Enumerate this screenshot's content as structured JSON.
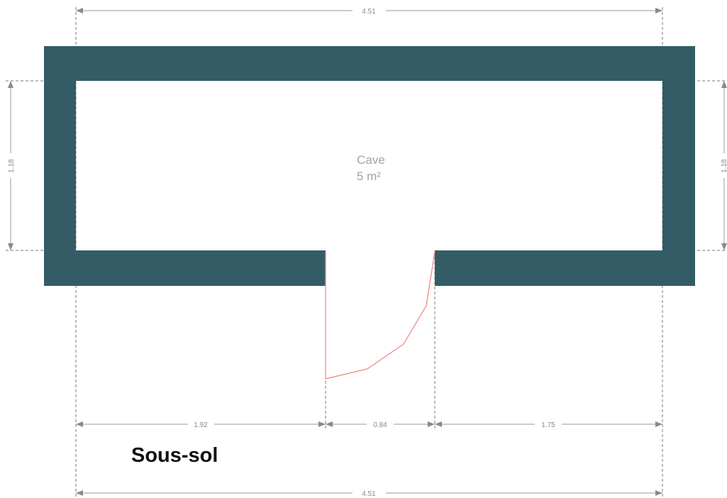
{
  "plan": {
    "level_title": "Sous-sol",
    "wall_color": "#335c66",
    "door_color": "#f08080",
    "room": {
      "name": "Cave",
      "area": "5 m²"
    },
    "dimensions": {
      "top_width": "4.51",
      "bottom_width": "4.51",
      "left_height": "1.18",
      "right_height": "1.18",
      "segment_left": "1.92",
      "segment_door": "0.84",
      "segment_right": "1.75"
    }
  }
}
